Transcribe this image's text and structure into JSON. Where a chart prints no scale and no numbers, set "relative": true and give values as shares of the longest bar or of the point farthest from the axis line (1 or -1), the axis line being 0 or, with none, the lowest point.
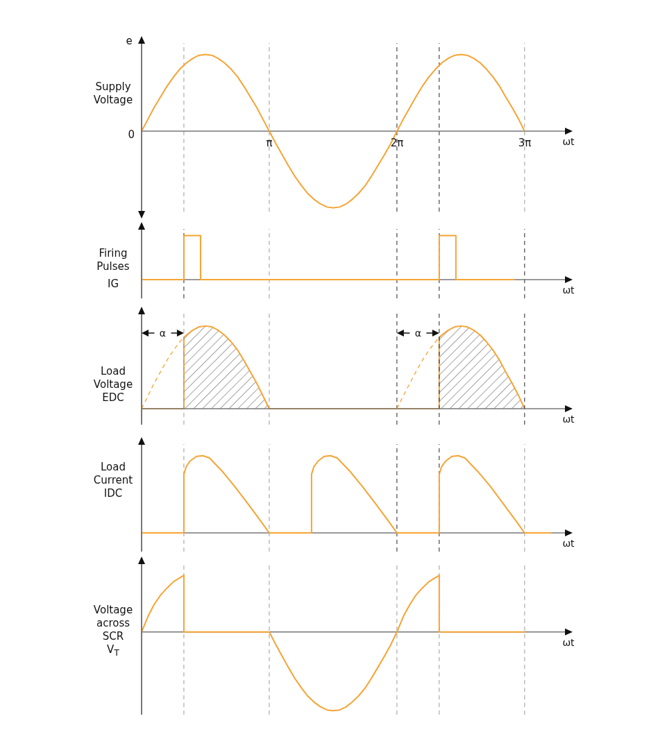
{
  "chart_data": [
    {
      "type": "line",
      "title": "Supply Voltage",
      "ylabel": "e",
      "xlabel": "ωt",
      "relative": true,
      "marker": "none",
      "line_style": "solid",
      "xlim": [
        0,
        10.43
      ],
      "xticks": [
        {
          "value": 3.1416,
          "label": "π"
        },
        {
          "value": 6.2832,
          "label": "2π"
        },
        {
          "value": 9.4248,
          "label": "3π"
        }
      ],
      "series": [
        {
          "color": "#f7a334",
          "x": [
            0,
            0.16,
            0.31,
            0.47,
            0.63,
            0.79,
            0.94,
            1.1,
            1.26,
            1.41,
            1.57,
            1.73,
            1.88,
            2.04,
            2.2,
            2.36,
            2.51,
            2.67,
            2.83,
            2.98,
            3.14,
            3.3,
            3.46,
            3.61,
            3.77,
            3.93,
            4.08,
            4.24,
            4.4,
            4.56,
            4.71,
            4.87,
            5.03,
            5.18,
            5.34,
            5.5,
            5.65,
            5.81,
            5.97,
            6.13,
            6.28,
            6.44,
            6.6,
            6.75,
            6.91,
            7.07,
            7.23,
            7.38,
            7.54,
            7.7,
            7.85,
            8.01,
            8.17,
            8.33,
            8.48,
            8.64,
            8.8,
            8.95,
            9.11,
            9.27,
            9.42
          ],
          "values": [
            0,
            0.16,
            0.31,
            0.45,
            0.59,
            0.71,
            0.81,
            0.89,
            0.95,
            0.99,
            1,
            0.99,
            0.95,
            0.89,
            0.81,
            0.71,
            0.59,
            0.45,
            0.31,
            0.16,
            0,
            -0.16,
            -0.31,
            -0.45,
            -0.59,
            -0.71,
            -0.81,
            -0.89,
            -0.95,
            -0.99,
            -1,
            -0.99,
            -0.95,
            -0.89,
            -0.81,
            -0.71,
            -0.59,
            -0.45,
            -0.31,
            -0.16,
            0,
            0.16,
            0.31,
            0.45,
            0.59,
            0.71,
            0.81,
            0.89,
            0.95,
            0.99,
            1,
            0.99,
            0.95,
            0.89,
            0.81,
            0.71,
            0.59,
            0.45,
            0.31,
            0.16,
            0
          ]
        }
      ],
      "ref_lines": [
        {
          "axis": "x",
          "value": 1.04,
          "color": "#9a9a9a",
          "line_style": "dashed"
        },
        {
          "axis": "x",
          "value": 3.14,
          "color": "#9a9a9a",
          "line_style": "dashed"
        },
        {
          "axis": "x",
          "value": 6.28,
          "color": "#222222",
          "line_style": "dashed"
        },
        {
          "axis": "x",
          "value": 7.32,
          "color": "#222222",
          "line_style": "dashed"
        },
        {
          "axis": "x",
          "value": 9.42,
          "color": "#9a9a9a",
          "line_style": "dashed"
        }
      ],
      "annotations": [
        {
          "text": "0",
          "x": 0,
          "y": 0
        }
      ]
    },
    {
      "type": "line",
      "title": "Firing Pulses",
      "ylabel": "IG",
      "xlabel": "ωt",
      "relative": true,
      "marker": "none",
      "line_style": "solid",
      "xlim": [
        0,
        10.43
      ],
      "series": [
        {
          "color": "#f7a334",
          "x": [
            0,
            1.04,
            1.04,
            1.45,
            1.45,
            7.32,
            7.32,
            7.73,
            7.73,
            9.17
          ],
          "values": [
            0,
            0,
            1,
            1,
            0,
            0,
            1,
            1,
            0,
            0
          ]
        }
      ],
      "ref_lines": [
        {
          "axis": "x",
          "value": 1.04,
          "color": "#222222",
          "line_style": "dashed"
        },
        {
          "axis": "x",
          "value": 3.14,
          "color": "#9a9a9a",
          "line_style": "dashed"
        },
        {
          "axis": "x",
          "value": 6.28,
          "color": "#222222",
          "line_style": "dashed"
        },
        {
          "axis": "x",
          "value": 7.32,
          "color": "#222222",
          "line_style": "dashed"
        },
        {
          "axis": "x",
          "value": 9.42,
          "color": "#222222",
          "line_style": "dashed"
        }
      ]
    },
    {
      "type": "line",
      "title": "Load Voltage",
      "ylabel": "EDC",
      "xlabel": "ωt",
      "relative": true,
      "marker": "none",
      "line_style": "solid",
      "xlim": [
        0,
        10.43
      ],
      "series": [
        {
          "type": "area",
          "color": "#f7a334",
          "x": [
            0,
            1.04,
            1.04,
            1.1,
            1.26,
            1.41,
            1.57,
            1.73,
            1.88,
            2.04,
            2.2,
            2.36,
            2.51,
            2.67,
            2.83,
            2.98,
            3.14,
            7.32,
            7.32,
            7.38,
            7.54,
            7.7,
            7.85,
            8.01,
            8.17,
            8.33,
            8.48,
            8.64,
            8.8,
            8.95,
            9.11,
            9.27,
            9.42
          ],
          "values": [
            0,
            0,
            0.86,
            0.89,
            0.95,
            0.99,
            1,
            0.99,
            0.95,
            0.89,
            0.81,
            0.71,
            0.59,
            0.45,
            0.31,
            0.16,
            0,
            0,
            0.86,
            0.89,
            0.95,
            0.99,
            1,
            0.99,
            0.95,
            0.89,
            0.81,
            0.71,
            0.59,
            0.45,
            0.31,
            0.16,
            0
          ]
        },
        {
          "line_style": "dashed",
          "color": "#f7a334",
          "x": [
            0,
            0.16,
            0.31,
            0.47,
            0.63,
            0.79,
            0.94,
            1.04,
            3.14,
            6.28,
            6.44,
            6.6,
            6.75,
            6.91,
            7.07,
            7.23,
            7.32
          ],
          "values": [
            0,
            0.16,
            0.31,
            0.45,
            0.59,
            0.71,
            0.81,
            0.86,
            null,
            0,
            0.16,
            0.31,
            0.45,
            0.59,
            0.71,
            0.81,
            0.86
          ]
        }
      ],
      "ref_lines": [
        {
          "axis": "x",
          "value": 1.04,
          "color": "#9a9a9a",
          "line_style": "dashed"
        },
        {
          "axis": "x",
          "value": 3.14,
          "color": "#9a9a9a",
          "line_style": "dashed"
        },
        {
          "axis": "x",
          "value": 6.28,
          "color": "#222222",
          "line_style": "dashed"
        },
        {
          "axis": "x",
          "value": 7.32,
          "color": "#222222",
          "line_style": "dashed"
        },
        {
          "axis": "x",
          "value": 9.42,
          "color": "#222222",
          "line_style": "dashed"
        }
      ],
      "annotations": [
        "α",
        "α"
      ]
    },
    {
      "type": "line",
      "title": "Load Current",
      "ylabel": "IDC",
      "xlabel": "ωt",
      "relative": true,
      "marker": "none",
      "line_style": "solid",
      "xlim": [
        0,
        10.43
      ],
      "series": [
        {
          "color": "#f7a334",
          "x": [
            0,
            1.04,
            1.04,
            1.1,
            1.19,
            1.35,
            1.51,
            1.67,
            1.98,
            2.29,
            2.61,
            2.92,
            3.14,
            4.18,
            4.18,
            4.24,
            4.34,
            4.49,
            4.65,
            4.81,
            5.12,
            5.43,
            5.75,
            6.06,
            6.28,
            7.32,
            7.32,
            7.38,
            7.48,
            7.63,
            7.79,
            7.95,
            8.26,
            8.58,
            8.89,
            9.2,
            9.42,
            10.08
          ],
          "values": [
            0,
            0,
            0.76,
            0.86,
            0.93,
            0.99,
            1,
            0.97,
            0.8,
            0.6,
            0.38,
            0.16,
            0,
            0,
            0.76,
            0.86,
            0.93,
            0.99,
            1,
            0.97,
            0.8,
            0.6,
            0.38,
            0.16,
            0,
            0,
            0.76,
            0.86,
            0.93,
            0.99,
            1,
            0.97,
            0.8,
            0.6,
            0.38,
            0.16,
            0,
            0
          ]
        }
      ],
      "ref_lines": [
        {
          "axis": "x",
          "value": 1.04,
          "color": "#9a9a9a",
          "line_style": "dashed"
        },
        {
          "axis": "x",
          "value": 3.14,
          "color": "#9a9a9a",
          "line_style": "dashed"
        },
        {
          "axis": "x",
          "value": 6.28,
          "color": "#222222",
          "line_style": "dashed"
        },
        {
          "axis": "x",
          "value": 7.32,
          "color": "#222222",
          "line_style": "dashed"
        },
        {
          "axis": "x",
          "value": 9.42,
          "color": "#9a9a9a",
          "line_style": "dashed"
        }
      ]
    },
    {
      "type": "line",
      "title": "Voltage across SCR",
      "ylabel": "V$_{T}$",
      "xlabel": "ωt",
      "relative": true,
      "marker": "none",
      "line_style": "solid",
      "xlim": [
        0,
        10.43
      ],
      "series": [
        {
          "color": "#f7a334",
          "x": [
            0,
            0.16,
            0.31,
            0.47,
            0.63,
            0.79,
            1.04,
            1.04,
            3.14,
            3.3,
            3.46,
            3.61,
            3.77,
            3.93,
            4.08,
            4.24,
            4.4,
            4.56,
            4.71,
            4.87,
            5.03,
            5.18,
            5.34,
            5.5,
            5.65,
            5.81,
            5.97,
            6.13,
            6.28,
            6.44,
            6.6,
            6.75,
            6.91,
            7.07,
            7.32,
            7.32,
            9.42
          ],
          "values": [
            0,
            0.2,
            0.35,
            0.47,
            0.56,
            0.64,
            0.72,
            0,
            0,
            -0.16,
            -0.31,
            -0.45,
            -0.59,
            -0.71,
            -0.81,
            -0.89,
            -0.95,
            -0.99,
            -1,
            -0.99,
            -0.95,
            -0.89,
            -0.81,
            -0.71,
            -0.59,
            -0.45,
            -0.31,
            -0.16,
            0,
            0.2,
            0.35,
            0.47,
            0.56,
            0.64,
            0.72,
            0,
            0
          ]
        }
      ],
      "ref_lines": [
        {
          "axis": "x",
          "value": 1.04,
          "color": "#9a9a9a",
          "line_style": "dashed"
        },
        {
          "axis": "x",
          "value": 3.14,
          "color": "#9a9a9a",
          "line_style": "dashed"
        },
        {
          "axis": "x",
          "value": 6.28,
          "color": "#9a9a9a",
          "line_style": "dashed"
        },
        {
          "axis": "x",
          "value": 7.32,
          "color": "#9a9a9a",
          "line_style": "dashed"
        },
        {
          "axis": "x",
          "value": 9.42,
          "color": "#9a9a9a",
          "line_style": "dashed"
        }
      ]
    }
  ]
}
